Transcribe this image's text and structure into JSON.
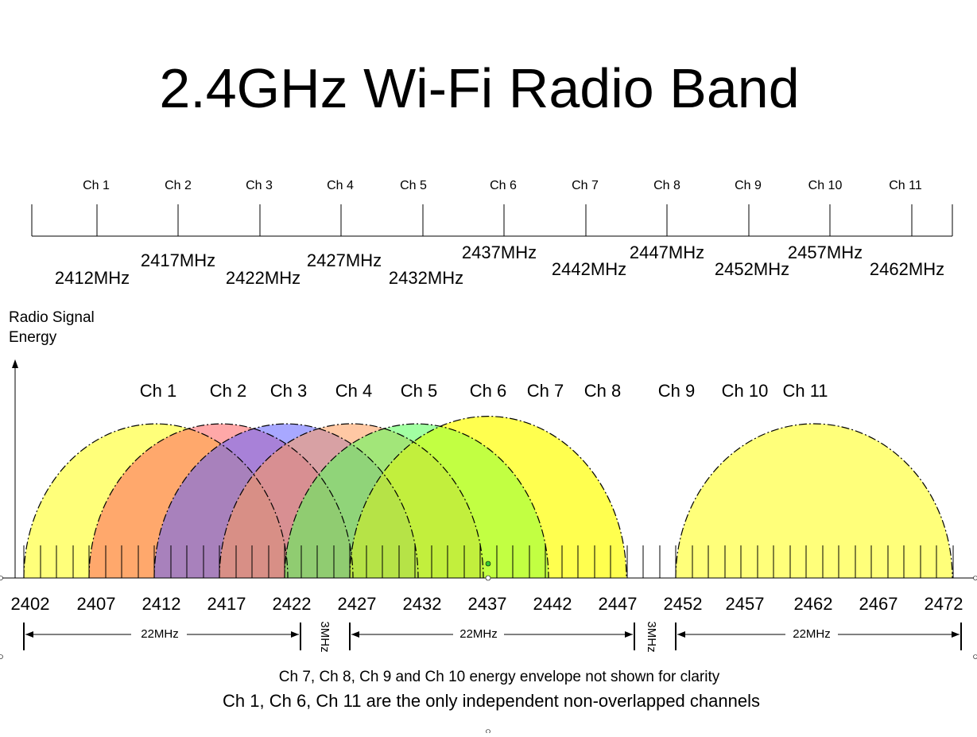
{
  "title": "2.4GHz Wi-Fi Radio Band",
  "top_scale": {
    "channels": [
      "Ch 1",
      "Ch 2",
      "Ch 3",
      "Ch 4",
      "Ch 5",
      "Ch 6",
      "Ch 7",
      "Ch 8",
      "Ch 9",
      "Ch 10",
      "Ch 11"
    ],
    "center_freqs": [
      "2412MHz",
      "2417MHz",
      "2422MHz",
      "2427MHz",
      "2432MHz",
      "2437MHz",
      "2442MHz",
      "2447MHz",
      "2452MHz",
      "2457MHz",
      "2462MHz"
    ]
  },
  "y_axis_label": [
    "Radio Signal",
    "Energy"
  ],
  "diagram_channels": [
    "Ch 1",
    "Ch 2",
    "Ch 3",
    "Ch 4",
    "Ch 5",
    "Ch 6",
    "Ch 7",
    "Ch 8",
    "Ch 9",
    "Ch 10",
    "Ch 11"
  ],
  "x_axis_freqs": [
    "2402",
    "2407",
    "2412",
    "2417",
    "2422",
    "2427",
    "2432",
    "2437",
    "2442",
    "2447",
    "2452",
    "2457",
    "2462",
    "2467",
    "2472"
  ],
  "spans": [
    {
      "label": "22MHz"
    },
    {
      "label": "22MHz"
    },
    {
      "label": "22MHz"
    }
  ],
  "gaps": [
    "3MHz",
    "3MHz"
  ],
  "colors": {
    "ch1": "#ffff7a",
    "ch2": "#ff7f7f",
    "ch3": "#7f7fff",
    "ch4": "#ffaa7f",
    "ch5": "#7fff7f",
    "ch6": "#ffff7a",
    "ch11": "#ffff7a"
  },
  "notes": [
    "Ch 7, Ch 8, Ch 9 and Ch 10 energy envelope not shown for clarity",
    "Ch 1, Ch 6, Ch 11 are the only independent non-overlapped channels"
  ]
}
